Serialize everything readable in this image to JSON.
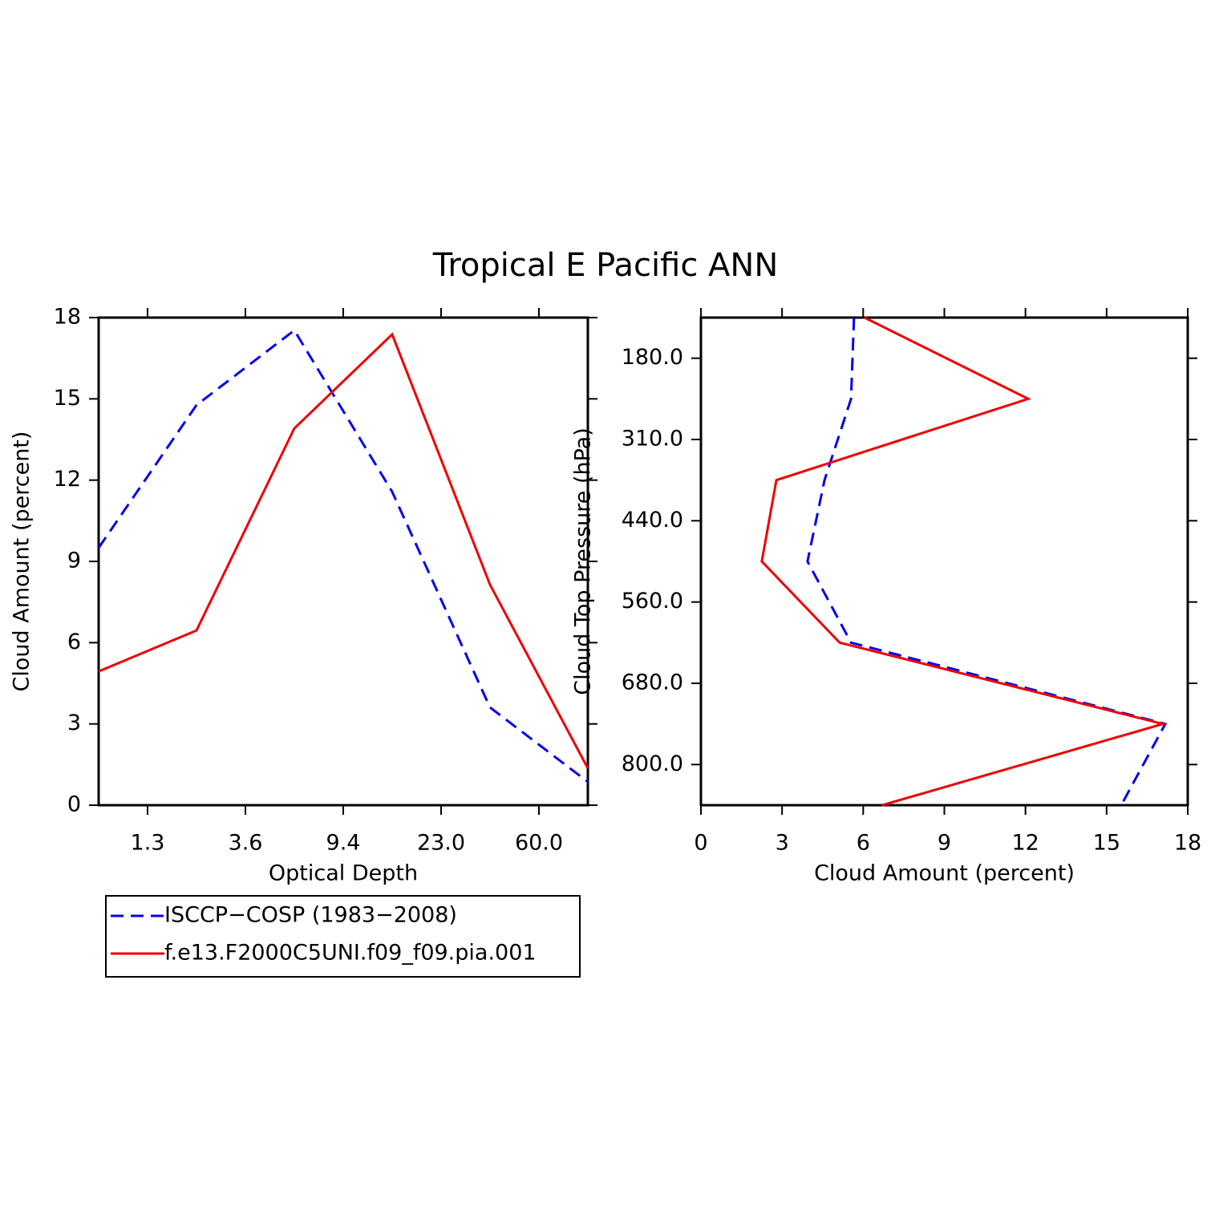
{
  "chart_data": [
    {
      "type": "line",
      "title": "Tropical E Pacific ANN",
      "xlabel": "Optical Depth",
      "ylabel": "Cloud Amount (percent)",
      "x": [
        0,
        1,
        2,
        3,
        4,
        5
      ],
      "xlim": [
        0,
        5
      ],
      "xticks": [
        {
          "value": 0.5,
          "label": "1.3"
        },
        {
          "value": 1.5,
          "label": "3.6"
        },
        {
          "value": 2.5,
          "label": "9.4"
        },
        {
          "value": 3.5,
          "label": "23.0"
        },
        {
          "value": 4.5,
          "label": "60.0"
        }
      ],
      "ylim": [
        0,
        18
      ],
      "yticks": [
        0,
        3,
        6,
        9,
        12,
        15,
        18
      ],
      "series": [
        {
          "name": "ISCCP−COSP (1983−2008)",
          "color": "#0000ee",
          "style": "dashed",
          "values": [
            9.5,
            14.77,
            17.53,
            11.57,
            3.61,
            0.86
          ]
        },
        {
          "name": "f.e13.F2000C5UNI.f09_f09.pia.001",
          "color": "#ee0000",
          "style": "solid",
          "values": [
            4.94,
            6.45,
            13.91,
            17.38,
            8.14,
            1.36
          ]
        }
      ]
    },
    {
      "type": "line",
      "orientation": "horizontal",
      "xlabel": "Cloud Amount (percent)",
      "ylabel": "Cloud Top Pressure (hPa)",
      "y": [
        0,
        1,
        2,
        3,
        4,
        5,
        6
      ],
      "ylim": [
        6,
        0
      ],
      "yticks": [
        {
          "value": 0.5,
          "label": "180.0"
        },
        {
          "value": 1.5,
          "label": "310.0"
        },
        {
          "value": 2.5,
          "label": "440.0"
        },
        {
          "value": 3.5,
          "label": "560.0"
        },
        {
          "value": 4.5,
          "label": "680.0"
        },
        {
          "value": 5.5,
          "label": "800.0"
        }
      ],
      "xlim": [
        0,
        18
      ],
      "xticks": [
        0,
        3,
        6,
        9,
        12,
        15,
        18
      ],
      "series": [
        {
          "color": "#0000ee",
          "style": "dashed",
          "values": [
            5.66,
            5.55,
            4.57,
            3.94,
            5.55,
            17.17,
            15.54
          ]
        },
        {
          "color": "#ee0000",
          "style": "solid",
          "values": [
            6.05,
            12.1,
            2.79,
            2.25,
            5.13,
            17.08,
            6.7
          ]
        }
      ]
    }
  ]
}
